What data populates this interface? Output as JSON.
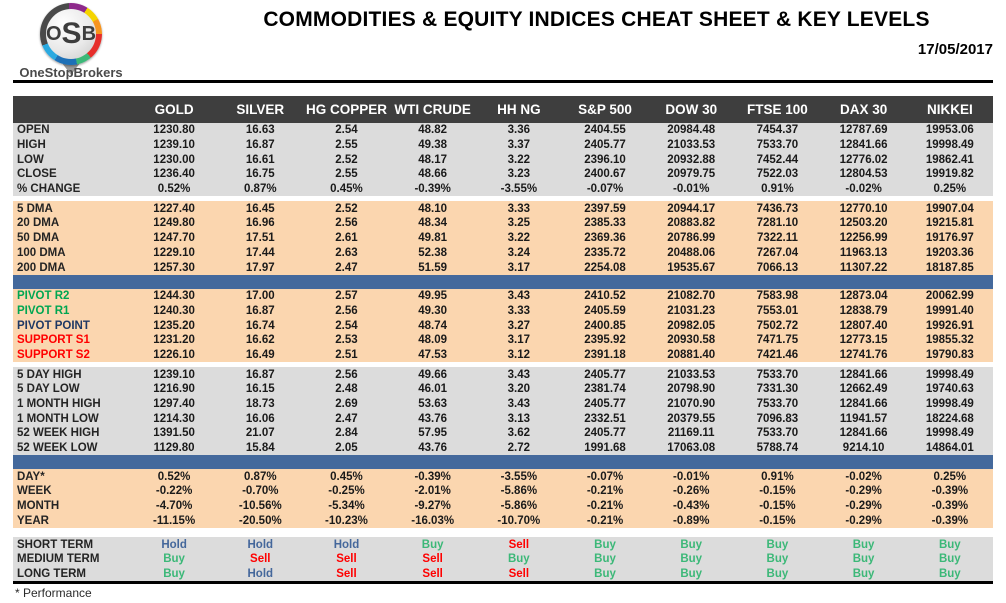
{
  "logo": {
    "letters": [
      "O",
      "S",
      "B"
    ],
    "subtext": "OneStopBrokers"
  },
  "header": {
    "title": "COMMODITIES & EQUITY INDICES CHEAT SHEET & KEY LEVELS",
    "date": "17/05/2017"
  },
  "colors": {
    "header_bar": "#3e3e3e",
    "gray_band": "#dcdcdc",
    "orange_band": "#fbd6af",
    "blue_separator": "#44699c",
    "pivot_green": "#00a651",
    "pivot_navy": "#1f3864",
    "support_red": "#ff0000",
    "buy": "#3cb878",
    "sell": "#ff0000",
    "hold": "#44679b"
  },
  "chart_data": {
    "type": "table",
    "title": "COMMODITIES & EQUITY INDICES CHEAT SHEET & KEY LEVELS",
    "columns": [
      "GOLD",
      "SILVER",
      "HG COPPER",
      "WTI CRUDE",
      "HH NG",
      "S&P 500",
      "DOW 30",
      "FTSE 100",
      "DAX 30",
      "NIKKEI"
    ],
    "sections": [
      {
        "band": "gray",
        "divider_before": "none",
        "rows": [
          {
            "label": "OPEN",
            "values": [
              "1230.80",
              "16.63",
              "2.54",
              "48.82",
              "3.36",
              "2404.55",
              "20984.48",
              "7454.37",
              "12787.69",
              "19953.06"
            ]
          },
          {
            "label": "HIGH",
            "values": [
              "1239.10",
              "16.87",
              "2.55",
              "49.38",
              "3.37",
              "2405.77",
              "21033.53",
              "7533.70",
              "12841.66",
              "19998.49"
            ]
          },
          {
            "label": "LOW",
            "values": [
              "1230.00",
              "16.61",
              "2.52",
              "48.17",
              "3.22",
              "2396.10",
              "20932.88",
              "7452.44",
              "12776.02",
              "19862.41"
            ]
          },
          {
            "label": "CLOSE",
            "values": [
              "1236.40",
              "16.75",
              "2.55",
              "48.66",
              "3.23",
              "2400.67",
              "20979.75",
              "7522.03",
              "12804.53",
              "19919.82"
            ]
          },
          {
            "label": "% CHANGE",
            "values": [
              "0.52%",
              "0.87%",
              "0.45%",
              "-0.39%",
              "-3.55%",
              "-0.07%",
              "-0.01%",
              "0.91%",
              "-0.02%",
              "0.25%"
            ]
          }
        ]
      },
      {
        "band": "orange",
        "divider_before": "gap",
        "rows": [
          {
            "label": "5 DMA",
            "values": [
              "1227.40",
              "16.45",
              "2.52",
              "48.10",
              "3.33",
              "2397.59",
              "20944.17",
              "7436.73",
              "12770.10",
              "19907.04"
            ]
          },
          {
            "label": "20 DMA",
            "values": [
              "1249.80",
              "16.96",
              "2.56",
              "48.34",
              "3.25",
              "2385.33",
              "20883.82",
              "7281.10",
              "12503.20",
              "19215.81"
            ]
          },
          {
            "label": "50 DMA",
            "values": [
              "1247.70",
              "17.51",
              "2.61",
              "49.81",
              "3.22",
              "2369.36",
              "20786.99",
              "7322.11",
              "12256.99",
              "19176.97"
            ]
          },
          {
            "label": "100 DMA",
            "values": [
              "1229.10",
              "17.44",
              "2.63",
              "52.38",
              "3.24",
              "2335.72",
              "20488.06",
              "7267.04",
              "11963.13",
              "19203.36"
            ]
          },
          {
            "label": "200 DMA",
            "values": [
              "1257.30",
              "17.97",
              "2.47",
              "51.59",
              "3.17",
              "2254.08",
              "19535.67",
              "7066.13",
              "11307.22",
              "18187.85"
            ]
          }
        ]
      },
      {
        "band": "orange",
        "divider_before": "blue",
        "rows": [
          {
            "label": "PIVOT R2",
            "label_color": "green",
            "values": [
              "1244.30",
              "17.00",
              "2.57",
              "49.95",
              "3.43",
              "2410.52",
              "21082.70",
              "7583.98",
              "12873.04",
              "20062.99"
            ]
          },
          {
            "label": "PIVOT R1",
            "label_color": "green",
            "values": [
              "1240.30",
              "16.87",
              "2.56",
              "49.30",
              "3.33",
              "2405.59",
              "21031.23",
              "7553.01",
              "12838.79",
              "19991.40"
            ]
          },
          {
            "label": "PIVOT POINT",
            "label_color": "navy",
            "values": [
              "1235.20",
              "16.74",
              "2.54",
              "48.74",
              "3.27",
              "2400.85",
              "20982.05",
              "7502.72",
              "12807.40",
              "19926.91"
            ]
          },
          {
            "label": "SUPPORT S1",
            "label_color": "red",
            "values": [
              "1231.20",
              "16.62",
              "2.53",
              "48.09",
              "3.17",
              "2395.92",
              "20930.58",
              "7471.75",
              "12773.15",
              "19855.32"
            ]
          },
          {
            "label": "SUPPORT S2",
            "label_color": "red",
            "values": [
              "1226.10",
              "16.49",
              "2.51",
              "47.53",
              "3.12",
              "2391.18",
              "20881.40",
              "7421.46",
              "12741.76",
              "19790.83"
            ]
          }
        ]
      },
      {
        "band": "gray",
        "divider_before": "gap",
        "rows": [
          {
            "label": "5 DAY HIGH",
            "values": [
              "1239.10",
              "16.87",
              "2.56",
              "49.66",
              "3.43",
              "2405.77",
              "21033.53",
              "7533.70",
              "12841.66",
              "19998.49"
            ]
          },
          {
            "label": "5 DAY LOW",
            "values": [
              "1216.90",
              "16.15",
              "2.48",
              "46.01",
              "3.20",
              "2381.74",
              "20798.90",
              "7331.30",
              "12662.49",
              "19740.63"
            ]
          },
          {
            "label": "1 MONTH HIGH",
            "values": [
              "1297.40",
              "18.73",
              "2.69",
              "53.63",
              "3.43",
              "2405.77",
              "21070.90",
              "7533.70",
              "12841.66",
              "19998.49"
            ]
          },
          {
            "label": "1 MONTH LOW",
            "values": [
              "1214.30",
              "16.06",
              "2.47",
              "43.76",
              "3.13",
              "2332.51",
              "20379.55",
              "7096.83",
              "11941.57",
              "18224.68"
            ]
          },
          {
            "label": "52 WEEK HIGH",
            "values": [
              "1391.50",
              "21.07",
              "2.84",
              "57.95",
              "3.62",
              "2405.77",
              "21169.11",
              "7533.70",
              "12841.66",
              "19998.49"
            ]
          },
          {
            "label": "52 WEEK LOW",
            "values": [
              "1129.80",
              "15.84",
              "2.05",
              "43.76",
              "2.72",
              "1991.68",
              "17063.08",
              "5788.74",
              "9214.10",
              "14864.01"
            ]
          }
        ]
      },
      {
        "band": "orange",
        "divider_before": "blue",
        "rows": [
          {
            "label": "DAY*",
            "values": [
              "0.52%",
              "0.87%",
              "0.45%",
              "-0.39%",
              "-3.55%",
              "-0.07%",
              "-0.01%",
              "0.91%",
              "-0.02%",
              "0.25%"
            ]
          },
          {
            "label": "WEEK",
            "values": [
              "-0.22%",
              "-0.70%",
              "-0.25%",
              "-2.01%",
              "-5.86%",
              "-0.21%",
              "-0.26%",
              "-0.15%",
              "-0.29%",
              "-0.39%"
            ]
          },
          {
            "label": "MONTH",
            "values": [
              "-4.70%",
              "-10.56%",
              "-5.34%",
              "-9.27%",
              "-5.86%",
              "-0.21%",
              "-0.43%",
              "-0.15%",
              "-0.29%",
              "-0.39%"
            ]
          },
          {
            "label": "YEAR",
            "values": [
              "-11.15%",
              "-20.50%",
              "-10.23%",
              "-16.03%",
              "-10.70%",
              "-0.21%",
              "-0.89%",
              "-0.15%",
              "-0.29%",
              "-0.39%"
            ]
          }
        ]
      },
      {
        "band": "gray",
        "divider_before": "gap2",
        "signals": true,
        "rows": [
          {
            "label": "SHORT TERM",
            "values": [
              "Hold",
              "Hold",
              "Hold",
              "Buy",
              "Sell",
              "Buy",
              "Buy",
              "Buy",
              "Buy",
              "Buy"
            ]
          },
          {
            "label": "MEDIUM TERM",
            "values": [
              "Buy",
              "Sell",
              "Sell",
              "Sell",
              "Buy",
              "Buy",
              "Buy",
              "Buy",
              "Buy",
              "Buy"
            ]
          },
          {
            "label": "LONG TERM",
            "values": [
              "Buy",
              "Hold",
              "Sell",
              "Sell",
              "Sell",
              "Buy",
              "Buy",
              "Buy",
              "Buy",
              "Buy"
            ]
          }
        ]
      }
    ]
  },
  "footnote": "* Performance"
}
